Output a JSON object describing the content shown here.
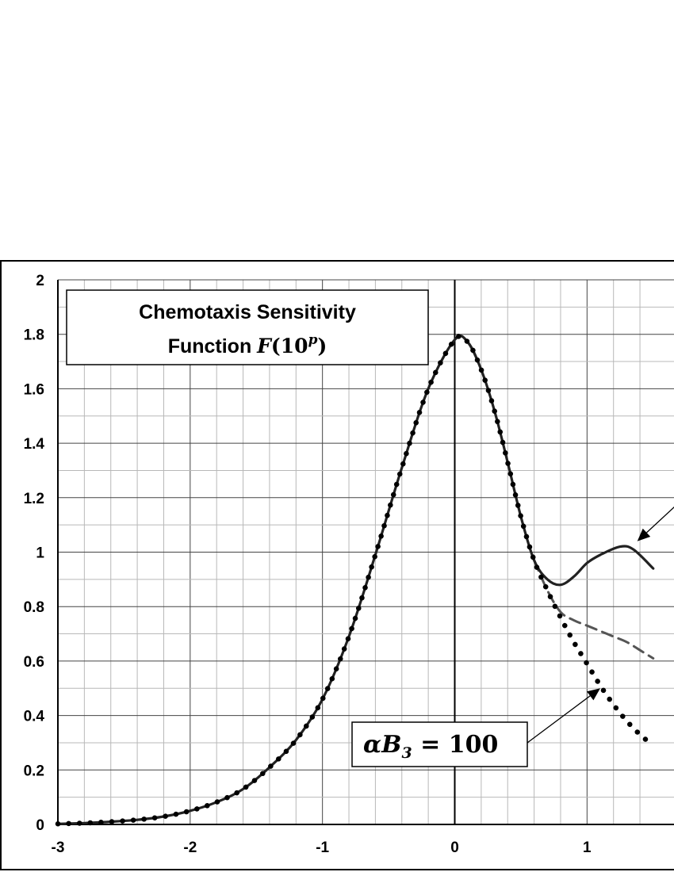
{
  "chart_data": {
    "type": "line",
    "title": {
      "line1": "Chemotaxis Sensitivity",
      "line2_prefix": "Function ",
      "line2_math": "F",
      "line2_open": "(",
      "line2_base": "10",
      "line2_exp": "p",
      "line2_close": ")"
    },
    "xlabel": "",
    "ylabel": "",
    "xlim": [
      -3,
      1.5
    ],
    "ylim": [
      0,
      2
    ],
    "x_ticks": [
      {
        "value": -3,
        "label": "-3"
      },
      {
        "value": -2,
        "label": "-2"
      },
      {
        "value": -1,
        "label": "-1"
      },
      {
        "value": 0,
        "label": "0"
      },
      {
        "value": 1,
        "label": "1"
      }
    ],
    "y_ticks": [
      {
        "value": 0,
        "label": "0"
      },
      {
        "value": 0.2,
        "label": "0.2"
      },
      {
        "value": 0.4,
        "label": "0.4"
      },
      {
        "value": 0.6,
        "label": "0.6"
      },
      {
        "value": 0.8,
        "label": "0.8"
      },
      {
        "value": 1,
        "label": "1"
      },
      {
        "value": 1.2,
        "label": "1.2"
      },
      {
        "value": 1.4,
        "label": "1.4"
      },
      {
        "value": 1.6,
        "label": "1.6"
      },
      {
        "value": 1.8,
        "label": "1.8"
      },
      {
        "value": 2,
        "label": "2"
      }
    ],
    "grid": {
      "major": true,
      "minor": true,
      "minor_x_step": 0.2,
      "minor_y_step": 0.1
    },
    "series": [
      {
        "style": "solid",
        "color": "#222222",
        "points": [
          [
            -3.0,
            0.002
          ],
          [
            -2.8,
            0.005
          ],
          [
            -2.6,
            0.01
          ],
          [
            -2.4,
            0.017
          ],
          [
            -2.2,
            0.029
          ],
          [
            -2.0,
            0.05
          ],
          [
            -1.8,
            0.082
          ],
          [
            -1.6,
            0.13
          ],
          [
            -1.4,
            0.21
          ],
          [
            -1.2,
            0.31
          ],
          [
            -1.0,
            0.46
          ],
          [
            -0.8,
            0.69
          ],
          [
            -0.6,
            0.99
          ],
          [
            -0.4,
            1.31
          ],
          [
            -0.2,
            1.6
          ],
          [
            0.0,
            1.78
          ],
          [
            0.1,
            1.77
          ],
          [
            0.2,
            1.67
          ],
          [
            0.3,
            1.52
          ],
          [
            0.4,
            1.33
          ],
          [
            0.5,
            1.13
          ],
          [
            0.6,
            0.97
          ],
          [
            0.7,
            0.9
          ],
          [
            0.8,
            0.88
          ],
          [
            0.9,
            0.91
          ],
          [
            1.0,
            0.96
          ],
          [
            1.1,
            0.99
          ],
          [
            1.25,
            1.02
          ],
          [
            1.35,
            1.01
          ],
          [
            1.5,
            0.94
          ]
        ]
      },
      {
        "style": "dashed",
        "color": "#555555",
        "points": [
          [
            0.6,
            0.97
          ],
          [
            0.7,
            0.86
          ],
          [
            0.8,
            0.78
          ],
          [
            0.9,
            0.75
          ],
          [
            1.0,
            0.73
          ],
          [
            1.1,
            0.71
          ],
          [
            1.2,
            0.69
          ],
          [
            1.3,
            0.67
          ],
          [
            1.4,
            0.64
          ],
          [
            1.5,
            0.61
          ]
        ]
      },
      {
        "style": "dotted",
        "color": "#000000",
        "points": [
          [
            -3.0,
            0.002
          ],
          [
            -2.8,
            0.005
          ],
          [
            -2.6,
            0.01
          ],
          [
            -2.4,
            0.017
          ],
          [
            -2.2,
            0.029
          ],
          [
            -2.0,
            0.05
          ],
          [
            -1.8,
            0.082
          ],
          [
            -1.6,
            0.13
          ],
          [
            -1.4,
            0.21
          ],
          [
            -1.2,
            0.31
          ],
          [
            -1.0,
            0.46
          ],
          [
            -0.8,
            0.69
          ],
          [
            -0.6,
            0.99
          ],
          [
            -0.4,
            1.31
          ],
          [
            -0.2,
            1.6
          ],
          [
            0.0,
            1.78
          ],
          [
            0.1,
            1.77
          ],
          [
            0.2,
            1.67
          ],
          [
            0.3,
            1.52
          ],
          [
            0.4,
            1.33
          ],
          [
            0.5,
            1.13
          ],
          [
            0.6,
            0.97
          ],
          [
            0.7,
            0.86
          ],
          [
            0.8,
            0.76
          ],
          [
            0.9,
            0.67
          ],
          [
            1.0,
            0.59
          ],
          [
            1.1,
            0.51
          ],
          [
            1.2,
            0.44
          ],
          [
            1.3,
            0.38
          ],
          [
            1.4,
            0.33
          ],
          [
            1.5,
            0.29
          ]
        ]
      }
    ],
    "annotations": [
      {
        "id": "dotted-label",
        "prefix": "α",
        "var": "B",
        "sub": "3",
        "equals": " = 100",
        "arrow_target": [
          1.1,
          0.5
        ]
      },
      {
        "id": "solid-pointer",
        "text": "",
        "arrow_target": [
          1.38,
          1.04
        ]
      }
    ]
  }
}
